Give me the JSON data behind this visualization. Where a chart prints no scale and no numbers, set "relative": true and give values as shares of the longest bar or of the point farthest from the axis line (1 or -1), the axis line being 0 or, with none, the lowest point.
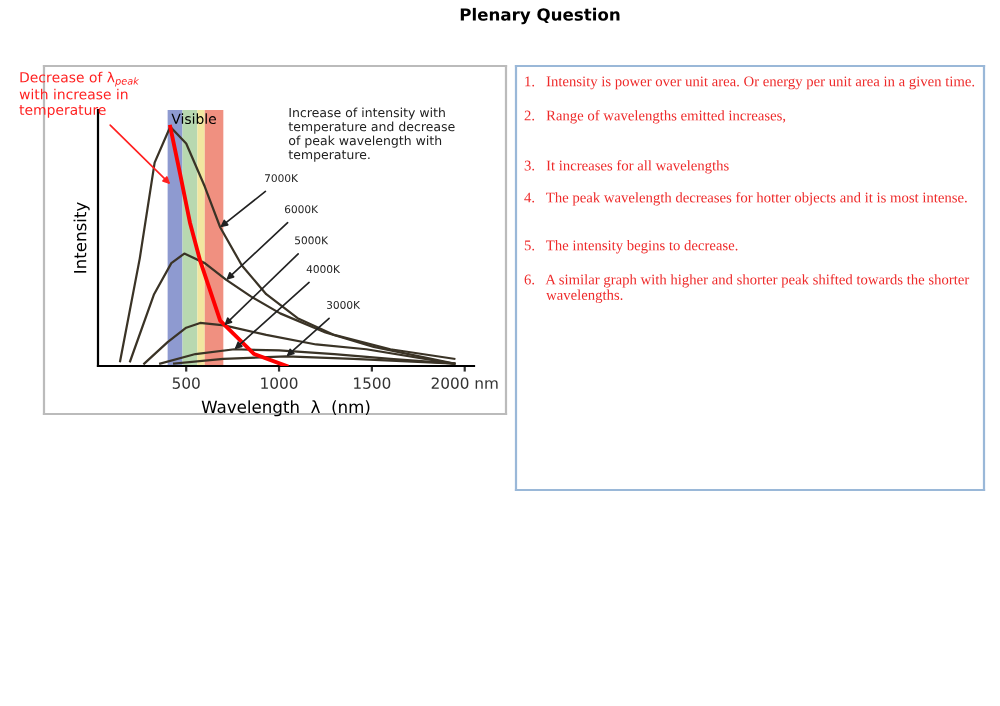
{
  "chart_data": [
    {
      "type": "line",
      "relative": true,
      "xlabel": "Wavelength  λ  (nm)",
      "ylabel": "Intensity",
      "xlim": [
        25,
        2050
      ],
      "xticks": [
        500,
        1000,
        1500,
        {
          "value": 2000,
          "label": "2000 nm"
        }
      ],
      "grid": false,
      "legend": false,
      "marker": "none",
      "line_style": "solid",
      "series": [
        {
          "color": "#3a3326",
          "x": [
            144,
            250,
            330,
            414,
            500,
            600,
            683,
            800,
            931,
            1100,
            1297,
            1600,
            1944
          ],
          "values": [
            0.02,
            0.45,
            0.85,
            1,
            0.93,
            0.75,
            0.58,
            0.42,
            0.3,
            0.2,
            0.13,
            0.07,
            0.03
          ]
        },
        {
          "color": "#3a3326",
          "x": [
            198,
            327,
            420,
            490,
            600,
            716,
            850,
            1006,
            1250,
            1510,
            1944
          ],
          "values": [
            0.02,
            0.3,
            0.43,
            0.47,
            0.43,
            0.36,
            0.29,
            0.22,
            0.14,
            0.08,
            0.01
          ]
        },
        {
          "color": "#3a3326",
          "x": [
            274,
            400,
            500,
            575,
            705,
            931,
            1200,
            1470,
            1944
          ],
          "values": [
            0.01,
            0.1,
            0.16,
            0.18,
            0.17,
            0.13,
            0.09,
            0.07,
            0.01
          ]
        },
        {
          "color": "#3a3326",
          "x": [
            360,
            550,
            760,
            1000,
            1297,
            1600,
            1944
          ],
          "values": [
            0.01,
            0.05,
            0.07,
            0.065,
            0.05,
            0.03,
            0.01
          ]
        },
        {
          "color": "#3a3326",
          "x": [
            435,
            700,
            1040,
            1400,
            1944
          ],
          "values": [
            0.01,
            0.03,
            0.04,
            0.03,
            0.01
          ]
        },
        {
          "color": "#ff0000",
          "x": [
            414,
            468,
            520,
            575,
            683,
            866,
            1040
          ],
          "values": [
            1,
            0.8,
            0.6,
            0.44,
            0.19,
            0.05,
            0.0
          ]
        }
      ],
      "bands": [
        {
          "axis": "x",
          "from": 400,
          "to": 480,
          "label": "Visible",
          "color": "#8e9ad0"
        },
        {
          "axis": "x",
          "from": 480,
          "to": 560,
          "color": "#b8d8b0"
        },
        {
          "axis": "x",
          "from": 560,
          "to": 600,
          "color": "#f2e6a0"
        },
        {
          "axis": "x",
          "from": 600,
          "to": 700,
          "color": "#f09080"
        }
      ],
      "annotations": [
        {
          "text": "Decrease of λ$_{peak}$\nwith increase in\ntemperature",
          "x": 414,
          "y": 0.76
        },
        "Increase of intensity with\ntemperature and decrease\nof peak wavelength with\ntemperature.",
        {
          "text": "7000K",
          "x": 683,
          "y": 0.58
        },
        {
          "text": "6000K",
          "x": 716,
          "y": 0.36
        },
        {
          "text": "5000K",
          "x": 705,
          "y": 0.17
        },
        {
          "text": "4000K",
          "x": 760,
          "y": 0.07
        },
        {
          "text": "3000K",
          "x": 1040,
          "y": 0.04
        }
      ]
    },
    {
      "type": "other",
      "title": "Plenary Question",
      "annotations": [
        "1.   Intensity is power over unit area. Or energy per unit area in a given time.",
        "2.   Range of wavelengths emitted increases,",
        "3.   It increases for all wavelengths",
        "4.   The peak wavelength decreases for hotter objects and it is most intense.",
        "5.   The intensity begins to decrease.",
        "6.   A similar graph with higher and shorter peak shifted towards the shorter\n      wavelengths."
      ]
    }
  ]
}
